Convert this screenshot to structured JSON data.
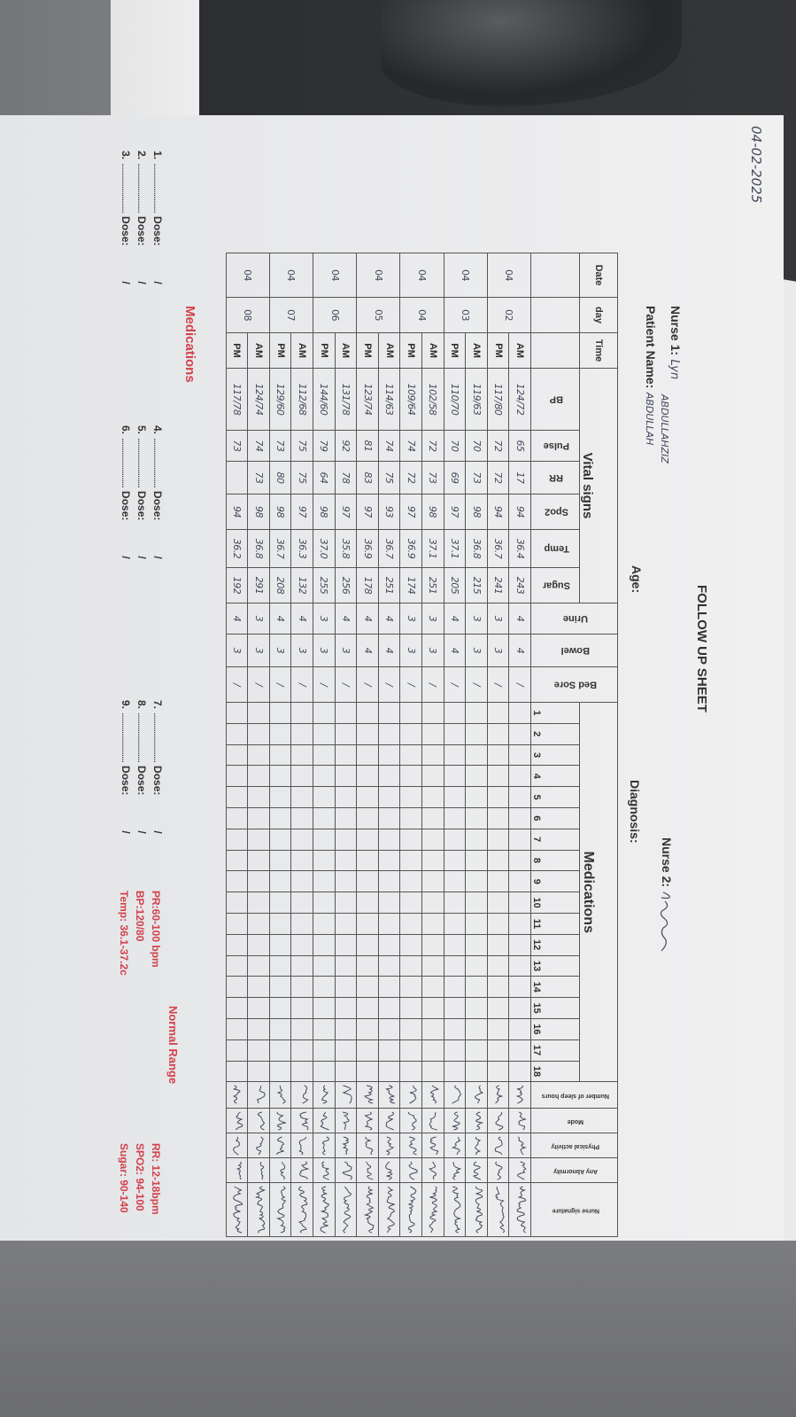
{
  "header": {
    "date_written": "04-02-2025",
    "title": "FOLLOW UP SHEET",
    "nurse1_label": "Nurse 1:",
    "nurse1_value": "Lyn",
    "patient_extra": "ABDULLAHZIZ",
    "patient_label": "Patient Name:",
    "patient_value": "ABDULLAH",
    "age_label": "Age:",
    "nurse2_label": "Nurse 2:",
    "diagnosis_label": "Diagnosis:"
  },
  "table": {
    "headers": {
      "date": "Date",
      "day": "day",
      "time": "Time",
      "vital_signs": "Vital signs",
      "bp": "BP",
      "pulse": "Pulse",
      "rr": "RR",
      "spo2": "Spo2",
      "temp": "Temp",
      "sugar": "Sugar",
      "urine": "Urine",
      "bowel": "Bowel",
      "bed_sore": "Bed Sore",
      "medications": "Medications",
      "med_numbers": [
        "1",
        "2",
        "3",
        "4",
        "5",
        "6",
        "7",
        "8",
        "9",
        "10",
        "11",
        "12",
        "13",
        "14",
        "15",
        "16",
        "17",
        "18"
      ],
      "sleep": "Number of sleep hours",
      "mode": "Mode",
      "physical": "Physical activity",
      "abnormity": "Any Abnormity",
      "nurse_signature": "Nurse signature"
    },
    "days": [
      {
        "date": "04",
        "day": "02",
        "shifts": [
          {
            "time": "AM",
            "bp": "124/72",
            "pulse": "65",
            "rr": "17",
            "spo2": "94",
            "temp": "36.4",
            "sugar": "243",
            "urine": "4",
            "bowel": "4",
            "bed_sore": "/"
          },
          {
            "time": "PM",
            "bp": "117/80",
            "pulse": "72",
            "rr": "72",
            "spo2": "94",
            "temp": "36.7",
            "sugar": "241",
            "urine": "3",
            "bowel": "3",
            "bed_sore": "/"
          }
        ]
      },
      {
        "date": "04",
        "day": "03",
        "shifts": [
          {
            "time": "AM",
            "bp": "119/63",
            "pulse": "70",
            "rr": "73",
            "spo2": "98",
            "temp": "36.8",
            "sugar": "215",
            "urine": "3",
            "bowel": "3",
            "bed_sore": "/"
          },
          {
            "time": "PM",
            "bp": "110/70",
            "pulse": "70",
            "rr": "69",
            "spo2": "97",
            "temp": "37.1",
            "sugar": "205",
            "urine": "4",
            "bowel": "4",
            "bed_sore": "/"
          }
        ]
      },
      {
        "date": "04",
        "day": "04",
        "shifts": [
          {
            "time": "AM",
            "bp": "102/58",
            "pulse": "72",
            "rr": "73",
            "spo2": "98",
            "temp": "37.1",
            "sugar": "251",
            "urine": "3",
            "bowel": "3",
            "bed_sore": "/"
          },
          {
            "time": "PM",
            "bp": "109/64",
            "pulse": "74",
            "rr": "72",
            "spo2": "97",
            "temp": "36.9",
            "sugar": "174",
            "urine": "3",
            "bowel": "3",
            "bed_sore": "/"
          }
        ]
      },
      {
        "date": "04",
        "day": "05",
        "shifts": [
          {
            "time": "AM",
            "bp": "114/63",
            "pulse": "74",
            "rr": "75",
            "spo2": "93",
            "temp": "36.7",
            "sugar": "251",
            "urine": "4",
            "bowel": "4",
            "bed_sore": "/"
          },
          {
            "time": "PM",
            "bp": "123/74",
            "pulse": "81",
            "rr": "83",
            "spo2": "97",
            "temp": "36.9",
            "sugar": "178",
            "urine": "4",
            "bowel": "4",
            "bed_sore": "/"
          }
        ]
      },
      {
        "date": "04",
        "day": "06",
        "shifts": [
          {
            "time": "AM",
            "bp": "131/78",
            "pulse": "92",
            "rr": "78",
            "spo2": "97",
            "temp": "35.8",
            "sugar": "256",
            "urine": "4",
            "bowel": "3",
            "bed_sore": "/"
          },
          {
            "time": "PM",
            "bp": "144/60",
            "pulse": "79",
            "rr": "64",
            "spo2": "98",
            "temp": "37.0",
            "sugar": "255",
            "urine": "3",
            "bowel": "3",
            "bed_sore": "/"
          }
        ]
      },
      {
        "date": "04",
        "day": "07",
        "shifts": [
          {
            "time": "AM",
            "bp": "112/68",
            "pulse": "75",
            "rr": "75",
            "spo2": "97",
            "temp": "36.3",
            "sugar": "132",
            "urine": "4",
            "bowel": "3",
            "bed_sore": "/"
          },
          {
            "time": "PM",
            "bp": "129/60",
            "pulse": "73",
            "rr": "80",
            "spo2": "98",
            "temp": "36.7",
            "sugar": "208",
            "urine": "4",
            "bowel": "3",
            "bed_sore": "/"
          }
        ]
      },
      {
        "date": "04",
        "day": "08",
        "shifts": [
          {
            "time": "AM",
            "bp": "124/74",
            "pulse": "74",
            "rr": "73",
            "spo2": "98",
            "temp": "36.8",
            "sugar": "291",
            "urine": "3",
            "bowel": "3",
            "bed_sore": "/"
          },
          {
            "time": "PM",
            "bp": "117/78",
            "pulse": "73",
            "rr": "",
            "spo2": "94",
            "temp": "36.2",
            "sugar": "192",
            "urine": "4",
            "bowel": "3",
            "bed_sore": "/"
          }
        ]
      }
    ]
  },
  "medications": {
    "title": "Medications",
    "items": [
      {
        "num": "1.",
        "dots": "........................",
        "dose": "Dose:",
        "slash": "/"
      },
      {
        "num": "2.",
        "dots": "........................",
        "dose": "Dose:",
        "slash": "/"
      },
      {
        "num": "3.",
        "dots": "........................",
        "dose": "Dose:",
        "slash": "/"
      },
      {
        "num": "4.",
        "dots": "........................",
        "dose": "Dose:",
        "slash": "/"
      },
      {
        "num": "5.",
        "dots": "........................",
        "dose": "Dose:",
        "slash": "/"
      },
      {
        "num": "6.",
        "dots": "........................",
        "dose": "Dose:",
        "slash": "/"
      },
      {
        "num": "7.",
        "dots": "........................",
        "dose": "Dose:",
        "slash": "/"
      },
      {
        "num": "8.",
        "dots": "........................",
        "dose": "Dose:",
        "slash": "/"
      },
      {
        "num": "9.",
        "dots": "........................",
        "dose": "Dose:",
        "slash": "/"
      }
    ]
  },
  "normal_range": {
    "title": "Normal Range",
    "items": [
      "PR:60-100 bpm",
      "RR: 12-18bpm",
      "BP:120/80",
      "SPO2: 94-100",
      "Temp: 36.1-37.2c",
      "Sugar: 90-140"
    ]
  },
  "colors": {
    "accent_red": "#d2424c",
    "ink": "#444a5c",
    "paper": "#ecedee"
  }
}
